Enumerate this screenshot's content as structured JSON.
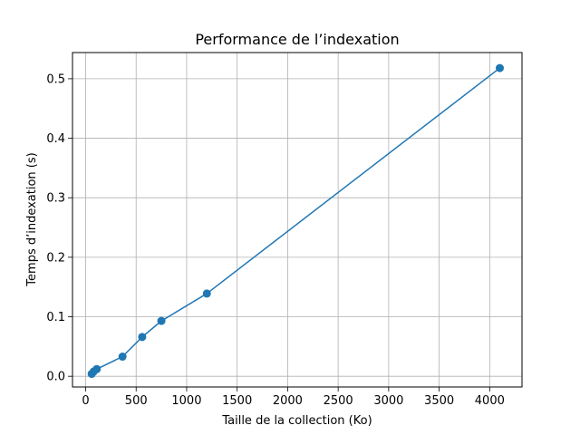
{
  "chart_data": {
    "type": "line",
    "title": "Performance de l’indexation",
    "xlabel": "Taille de la collection (Ko)",
    "ylabel": "Temps d’indexation (s)",
    "xlim": [
      -130,
      4320
    ],
    "ylim": [
      -0.018,
      0.544
    ],
    "xticks": [
      0,
      500,
      1000,
      1500,
      2000,
      2500,
      3000,
      3500,
      4000
    ],
    "xtick_labels": [
      "0",
      "500",
      "1000",
      "1500",
      "2000",
      "2500",
      "3000",
      "3500",
      "4000"
    ],
    "yticks": [
      0.0,
      0.1,
      0.2,
      0.3,
      0.4,
      0.5
    ],
    "ytick_labels": [
      "0.0",
      "0.1",
      "0.2",
      "0.3",
      "0.4",
      "0.5"
    ],
    "grid": true,
    "color": "#1f77b4",
    "series": [
      {
        "marker": "circle",
        "x": [
          60,
          80,
          110,
          365,
          560,
          750,
          1200,
          4100
        ],
        "y": [
          0.004,
          0.008,
          0.012,
          0.033,
          0.066,
          0.093,
          0.139,
          0.518
        ]
      }
    ]
  }
}
